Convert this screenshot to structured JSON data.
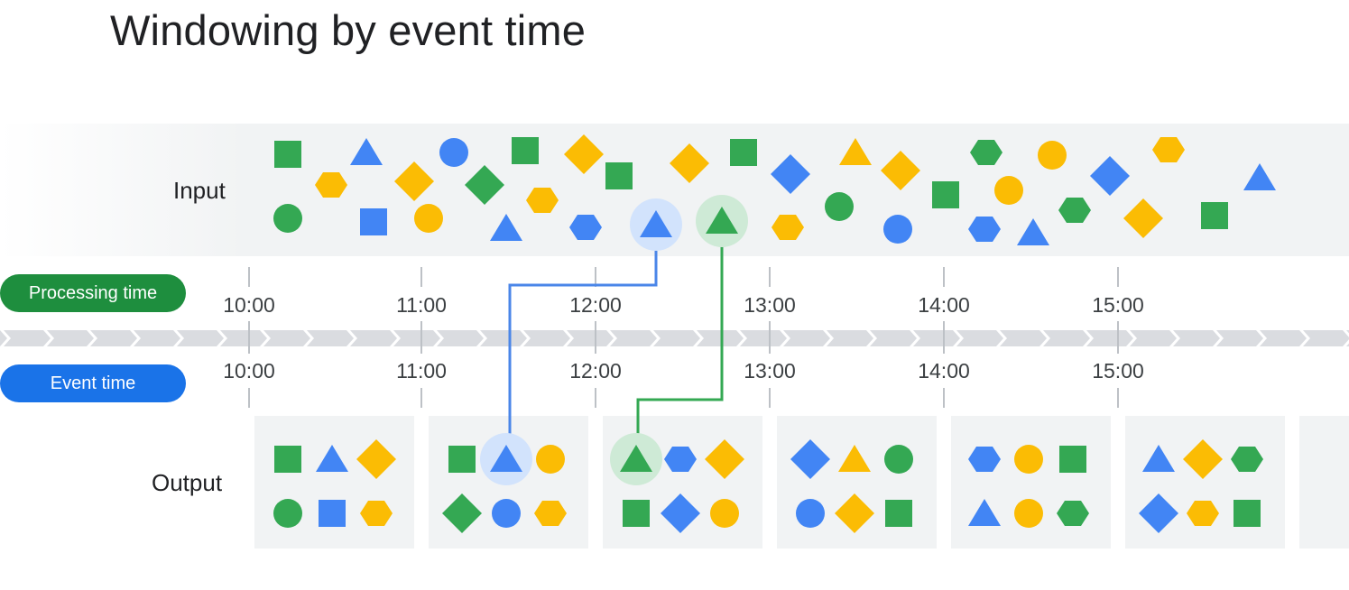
{
  "title": "Windowing by event time",
  "labels": {
    "input": "Input",
    "output": "Output",
    "processing_time": "Processing time",
    "event_time": "Event time"
  },
  "ticks": [
    "10:00",
    "11:00",
    "12:00",
    "13:00",
    "14:00",
    "15:00"
  ],
  "colors": {
    "green": "#34a853",
    "blue": "#4285f4",
    "yellow": "#fbbc04",
    "processing_pill": "#1e8e3e",
    "event_pill": "#1a73e8",
    "band": "#f1f3f4",
    "arrow_track": "#dadce0",
    "blue_link": "#4a86e8",
    "green_link": "#34a853"
  },
  "input_elements": [
    {
      "shape": "square",
      "color": "green"
    },
    {
      "shape": "circle",
      "color": "green"
    },
    {
      "shape": "hexagon",
      "color": "yellow"
    },
    {
      "shape": "triangle",
      "color": "blue"
    },
    {
      "shape": "square",
      "color": "blue"
    },
    {
      "shape": "diamond",
      "color": "yellow"
    },
    {
      "shape": "circle",
      "color": "yellow"
    },
    {
      "shape": "circle",
      "color": "blue"
    },
    {
      "shape": "diamond",
      "color": "green"
    },
    {
      "shape": "triangle",
      "color": "blue"
    },
    {
      "shape": "square",
      "color": "green"
    },
    {
      "shape": "hexagon",
      "color": "yellow"
    },
    {
      "shape": "diamond",
      "color": "yellow"
    },
    {
      "shape": "hexagon",
      "color": "blue"
    },
    {
      "shape": "square",
      "color": "green"
    },
    {
      "shape": "triangle",
      "color": "blue",
      "highlight": "blue"
    },
    {
      "shape": "diamond",
      "color": "yellow"
    },
    {
      "shape": "triangle",
      "color": "green",
      "highlight": "green"
    },
    {
      "shape": "square",
      "color": "green"
    },
    {
      "shape": "diamond",
      "color": "blue"
    },
    {
      "shape": "hexagon",
      "color": "yellow"
    },
    {
      "shape": "circle",
      "color": "green"
    },
    {
      "shape": "triangle",
      "color": "yellow"
    },
    {
      "shape": "diamond",
      "color": "yellow"
    },
    {
      "shape": "circle",
      "color": "blue"
    },
    {
      "shape": "square",
      "color": "green"
    },
    {
      "shape": "hexagon",
      "color": "green"
    },
    {
      "shape": "hexagon",
      "color": "blue"
    },
    {
      "shape": "circle",
      "color": "yellow"
    },
    {
      "shape": "triangle",
      "color": "blue"
    },
    {
      "shape": "circle",
      "color": "yellow"
    },
    {
      "shape": "hexagon",
      "color": "green"
    },
    {
      "shape": "diamond",
      "color": "blue"
    },
    {
      "shape": "diamond",
      "color": "yellow"
    },
    {
      "shape": "hexagon",
      "color": "yellow"
    },
    {
      "shape": "square",
      "color": "green"
    },
    {
      "shape": "triangle",
      "color": "blue"
    }
  ],
  "output_windows": [
    {
      "items": [
        {
          "shape": "square",
          "color": "green"
        },
        {
          "shape": "triangle",
          "color": "blue"
        },
        {
          "shape": "diamond",
          "color": "yellow"
        },
        {
          "shape": "circle",
          "color": "green"
        },
        {
          "shape": "square",
          "color": "blue"
        },
        {
          "shape": "hexagon",
          "color": "yellow"
        }
      ]
    },
    {
      "items": [
        {
          "shape": "square",
          "color": "green"
        },
        {
          "shape": "triangle",
          "color": "blue",
          "highlight": "blue"
        },
        {
          "shape": "circle",
          "color": "yellow"
        },
        {
          "shape": "diamond",
          "color": "green"
        },
        {
          "shape": "circle",
          "color": "blue"
        },
        {
          "shape": "hexagon",
          "color": "yellow"
        }
      ]
    },
    {
      "items": [
        {
          "shape": "triangle",
          "color": "green",
          "highlight": "green"
        },
        {
          "shape": "hexagon",
          "color": "blue"
        },
        {
          "shape": "diamond",
          "color": "yellow"
        },
        {
          "shape": "square",
          "color": "green"
        },
        {
          "shape": "diamond",
          "color": "blue"
        },
        {
          "shape": "circle",
          "color": "yellow"
        }
      ]
    },
    {
      "items": [
        {
          "shape": "diamond",
          "color": "blue"
        },
        {
          "shape": "triangle",
          "color": "yellow"
        },
        {
          "shape": "circle",
          "color": "green"
        },
        {
          "shape": "circle",
          "color": "blue"
        },
        {
          "shape": "diamond",
          "color": "yellow"
        },
        {
          "shape": "square",
          "color": "green"
        }
      ]
    },
    {
      "items": [
        {
          "shape": "hexagon",
          "color": "blue"
        },
        {
          "shape": "circle",
          "color": "yellow"
        },
        {
          "shape": "square",
          "color": "green"
        },
        {
          "shape": "triangle",
          "color": "blue"
        },
        {
          "shape": "circle",
          "color": "yellow"
        },
        {
          "shape": "hexagon",
          "color": "green"
        }
      ]
    },
    {
      "items": [
        {
          "shape": "triangle",
          "color": "blue"
        },
        {
          "shape": "diamond",
          "color": "yellow"
        },
        {
          "shape": "hexagon",
          "color": "green"
        },
        {
          "shape": "diamond",
          "color": "blue"
        },
        {
          "shape": "hexagon",
          "color": "yellow"
        },
        {
          "shape": "square",
          "color": "green"
        }
      ]
    },
    {
      "items": []
    }
  ]
}
